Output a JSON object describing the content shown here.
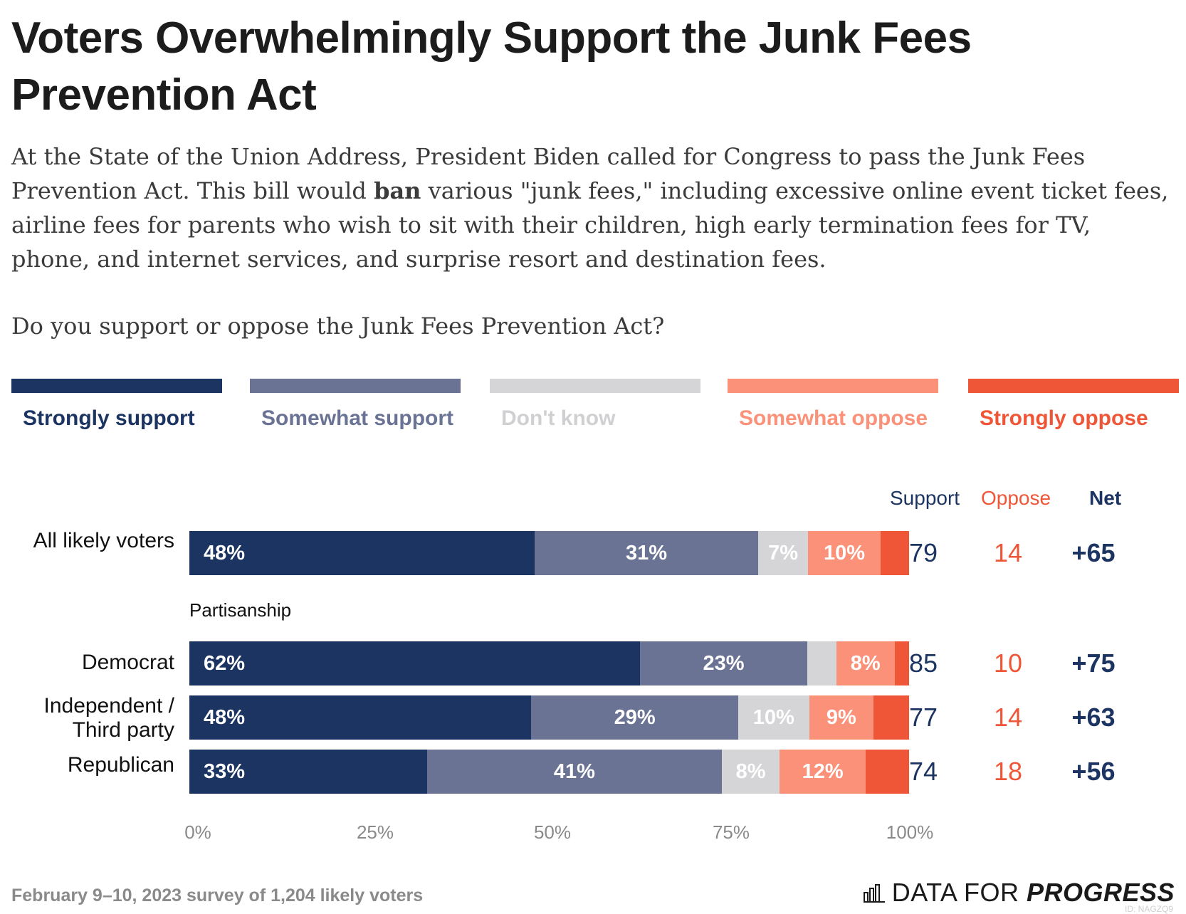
{
  "title": "Voters Overwhelmingly Support the Junk Fees Prevention Act",
  "description": {
    "before": "At the State of the Union Address, President Biden called for Congress to pass the Junk Fees Prevention Act. This bill would ",
    "emphasis": "ban",
    "after": " various \"junk fees,\" including excessive online event ticket fees, airline fees for parents who wish to sit with their children, high early termination fees for TV, phone, and internet services, and surprise resort and destination fees."
  },
  "question": "Do you support or oppose the Junk Fees Prevention Act?",
  "colors": {
    "strongly_support": "#1c3461",
    "somewhat_support": "#6b7394",
    "dont_know": "#d5d5d7",
    "somewhat_oppose": "#fb9179",
    "strongly_oppose": "#ef5638"
  },
  "legend": [
    {
      "key": "strongly_support",
      "label": "Strongly support",
      "text_color": "#1c3461"
    },
    {
      "key": "somewhat_support",
      "label": "Somewhat support",
      "text_color": "#6b7394"
    },
    {
      "key": "dont_know",
      "label": "Don't know",
      "text_color": "#d0d0d2"
    },
    {
      "key": "somewhat_oppose",
      "label": "Somewhat oppose",
      "text_color": "#fb9179"
    },
    {
      "key": "strongly_oppose",
      "label": "Strongly oppose",
      "text_color": "#ef5638"
    }
  ],
  "columns": {
    "support": "Support",
    "oppose": "Oppose",
    "net": "Net"
  },
  "group_label": "Partisanship",
  "footer": {
    "note": "February 9–10, 2023 survey of 1,204 likely voters",
    "brand_plain": "DATA FOR ",
    "brand_bold": "PROGRESS",
    "chart_id": "ID: NAGZQ9"
  },
  "chart_data": {
    "type": "bar",
    "orientation": "horizontal",
    "stacked": true,
    "xlim": [
      0,
      100
    ],
    "x_ticks": [
      "0%",
      "25%",
      "50%",
      "75%",
      "100%"
    ],
    "categories": [
      "All likely voters",
      "Democrat",
      "Independent / Third party",
      "Republican"
    ],
    "series": [
      {
        "name": "Strongly support",
        "key": "strongly_support",
        "values": [
          48,
          62,
          48,
          33
        ],
        "labels": [
          "48%",
          "62%",
          "48%",
          "33%"
        ]
      },
      {
        "name": "Somewhat support",
        "key": "somewhat_support",
        "values": [
          31,
          23,
          29,
          41
        ],
        "labels": [
          "31%",
          "23%",
          "29%",
          "41%"
        ]
      },
      {
        "name": "Don't know",
        "key": "dont_know",
        "values": [
          7,
          4,
          10,
          8
        ],
        "labels": [
          "7%",
          "",
          "10%",
          "8%"
        ]
      },
      {
        "name": "Somewhat oppose",
        "key": "somewhat_oppose",
        "values": [
          10,
          8,
          9,
          12
        ],
        "labels": [
          "10%",
          "8%",
          "9%",
          "12%"
        ]
      },
      {
        "name": "Strongly oppose",
        "key": "strongly_oppose",
        "values": [
          4,
          2,
          5,
          6
        ],
        "labels": [
          "",
          "",
          "",
          ""
        ]
      }
    ],
    "summary": [
      {
        "support": "79",
        "oppose": "14",
        "net": "+65"
      },
      {
        "support": "85",
        "oppose": "10",
        "net": "+75"
      },
      {
        "support": "77",
        "oppose": "14",
        "net": "+63"
      },
      {
        "support": "74",
        "oppose": "18",
        "net": "+56"
      }
    ]
  }
}
